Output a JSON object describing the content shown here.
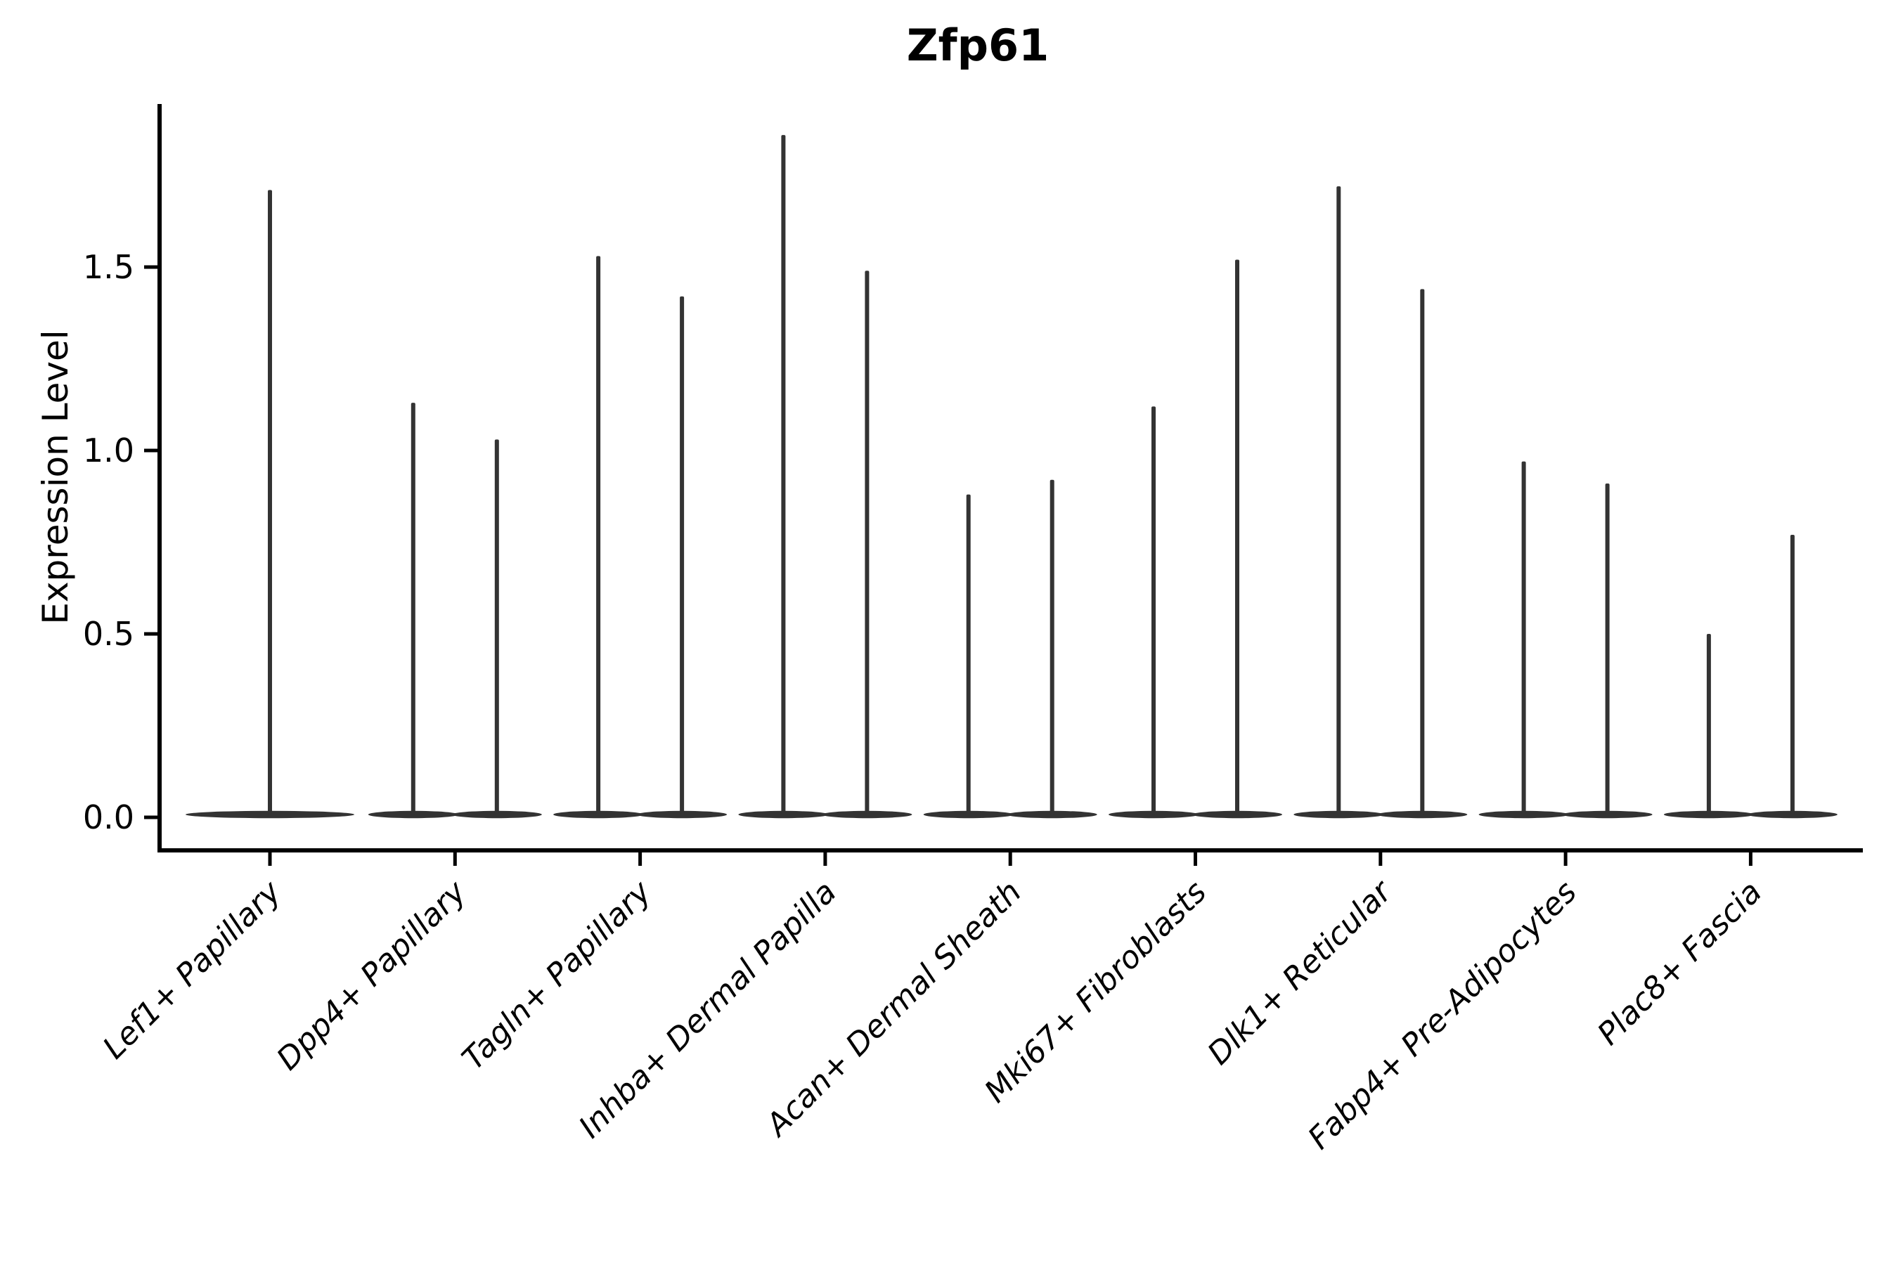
{
  "chart_data": {
    "type": "violin",
    "title": "Zfp61",
    "ylabel": "Expression Level",
    "xlabel": "",
    "yticks": [
      "0.0",
      "0.5",
      "1.0",
      "1.5"
    ],
    "ytick_values": [
      0.0,
      0.5,
      1.0,
      1.5
    ],
    "ylim": [
      -0.09,
      1.94
    ],
    "grid": "off",
    "legend": "none",
    "categories": [
      "Lef1+ Papillary",
      "Dpp4+ Papillary",
      "Tagln+ Papillary",
      "Inhba+ Dermal Papilla",
      "Acan+ Dermal Sheath",
      "Mki67+ Fibroblasts",
      "Dlk1+ Reticular",
      "Fabp4+ Pre-Adipocytes",
      "Plac8+ Fascia"
    ],
    "series": [
      {
        "category": "Lef1+ Papillary",
        "violin_max": [
          1.71
        ]
      },
      {
        "category": "Dpp4+ Papillary",
        "violin_max": [
          1.13,
          1.03
        ]
      },
      {
        "category": "Tagln+ Papillary",
        "violin_max": [
          1.53,
          1.42
        ]
      },
      {
        "category": "Inhba+ Dermal Papilla",
        "violin_max": [
          1.86,
          1.49
        ]
      },
      {
        "category": "Acan+ Dermal Sheath",
        "violin_max": [
          0.88,
          0.92
        ]
      },
      {
        "category": "Mki67+ Fibroblasts",
        "violin_max": [
          1.12,
          1.52
        ]
      },
      {
        "category": "Dlk1+ Reticular",
        "violin_max": [
          1.72,
          1.44
        ]
      },
      {
        "category": "Fabp4+ Pre-Adipocytes",
        "violin_max": [
          0.97,
          0.91
        ]
      },
      {
        "category": "Plac8+ Fascia",
        "violin_max": [
          0.5,
          0.77
        ]
      }
    ],
    "baseline_value": 0.0,
    "colors": {
      "violin": "#333333",
      "axis": "#000000",
      "text": "#000000"
    }
  }
}
